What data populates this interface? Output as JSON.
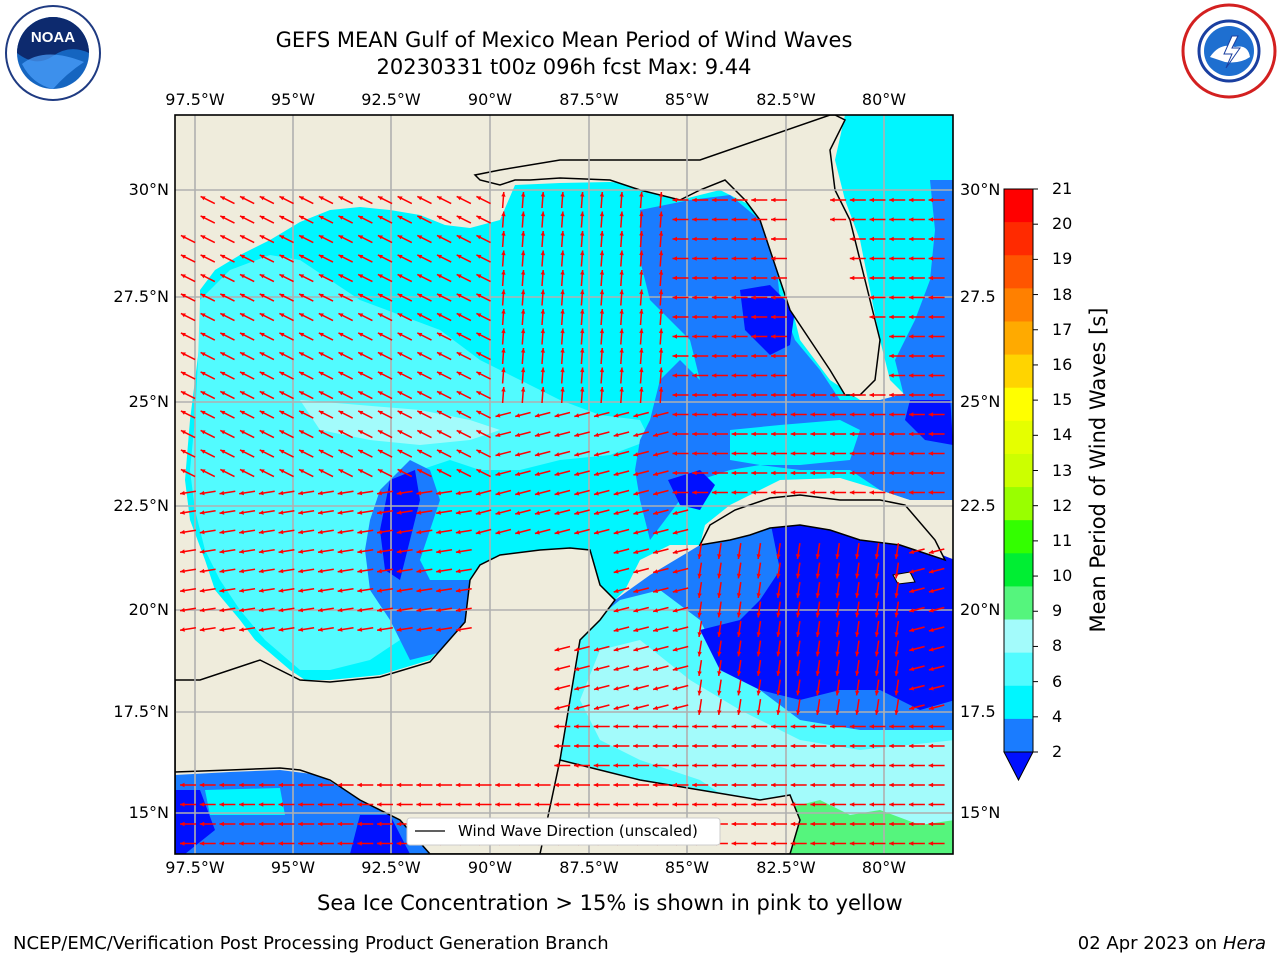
{
  "title": {
    "line1": "GEFS MEAN Gulf of Mexico Mean Period of Wind Waves",
    "line2": "20230331 t00z 096h fcst   Max: 9.44"
  },
  "map": {
    "lon_labels": [
      "97.5°W",
      "95°W",
      "92.5°W",
      "90°W",
      "87.5°W",
      "85°W",
      "82.5°W",
      "80°W"
    ],
    "lat_labels_left": [
      "30°N",
      "27.5°N",
      "25°N",
      "22.5°N",
      "20°N",
      "17.5°N",
      "15°N"
    ],
    "lat_labels_right": [
      "30°N",
      "27.5",
      "25°N",
      "22.5",
      "20°N",
      "17.5",
      "15°N"
    ],
    "legend_label": "Wind Wave Direction (unscaled)",
    "colors": {
      "land": "#efecdc",
      "wave_2_4": "#1a7cff",
      "wave_lt2": "#0010ff",
      "wave_4_6": "#00f6ff",
      "wave_6_8": "#52fbff",
      "wave_8_9": "#a3fbfb",
      "wave_9_10": "#55f57d",
      "arrow": "#ff0000",
      "grid": "#b0b0b0"
    }
  },
  "colorbar": {
    "label": "Mean Period of Wind Waves [s]",
    "ticks": [
      "21",
      "20",
      "19",
      "18",
      "17",
      "16",
      "15",
      "14",
      "13",
      "12",
      "11",
      "10",
      "9",
      "8",
      "6",
      "4",
      "2"
    ],
    "colors": [
      "#ff0000",
      "#ff2a00",
      "#ff5500",
      "#ff8000",
      "#ffaa00",
      "#ffd400",
      "#ffff00",
      "#e5ff00",
      "#ccff00",
      "#99ff00",
      "#33ff00",
      "#00ee33",
      "#55f57d",
      "#a3fbfb",
      "#52fbff",
      "#00f6ff",
      "#1a7cff"
    ]
  },
  "sea_ice_note": "Sea Ice Concentration > 15% is shown in pink to yellow",
  "footer": {
    "left": "NCEP/EMC/Verification Post Processing Product Generation Branch",
    "right_date": "02 Apr 2023 on ",
    "right_host": "Hera"
  },
  "logos": {
    "noaa_text": "NOAA",
    "nws_text": "NATIONAL WEATHER SERVICE"
  }
}
